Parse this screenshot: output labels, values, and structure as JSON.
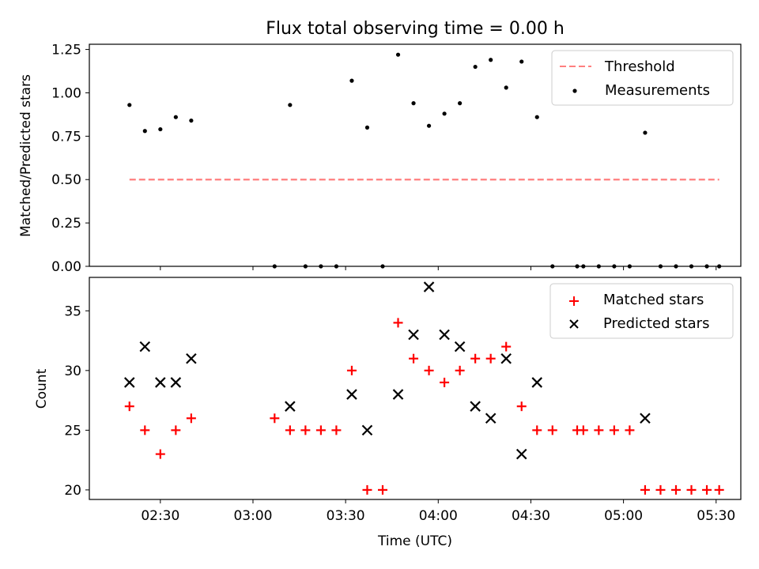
{
  "chart_data": [
    {
      "type": "scatter",
      "title": "Flux total observing time = 0.00 h",
      "xlabel": "",
      "ylabel": "Matched/Predicted stars",
      "ylim": [
        0,
        1.28
      ],
      "yticks": [
        "0.00",
        "0.25",
        "0.50",
        "0.75",
        "1.00",
        "1.25"
      ],
      "legend_position": "top-right",
      "series": [
        {
          "name": "Threshold",
          "kind": "dashed-line",
          "color": "#ff7f7f",
          "x": [
            "02:20",
            "05:31"
          ],
          "y": [
            0.5,
            0.5
          ]
        },
        {
          "name": "Measurements",
          "kind": "point",
          "color": "#000000",
          "x": [
            "02:20",
            "02:25",
            "02:30",
            "02:35",
            "02:40",
            "03:07",
            "03:12",
            "03:17",
            "03:22",
            "03:27",
            "03:32",
            "03:37",
            "03:42",
            "03:47",
            "03:52",
            "03:57",
            "04:02",
            "04:07",
            "04:12",
            "04:17",
            "04:22",
            "04:27",
            "04:32",
            "04:37",
            "04:45",
            "04:47",
            "04:52",
            "04:57",
            "05:02",
            "05:07",
            "05:12",
            "05:17",
            "05:22",
            "05:27",
            "05:31"
          ],
          "y": [
            0.93,
            0.78,
            0.79,
            0.86,
            0.84,
            0.0,
            0.93,
            0.0,
            0.0,
            0.0,
            1.07,
            0.8,
            0.0,
            1.22,
            0.94,
            0.81,
            0.88,
            0.94,
            1.15,
            1.19,
            1.03,
            1.18,
            0.86,
            0.0,
            0.0,
            0.0,
            0.0,
            0.0,
            0.0,
            0.77,
            0.0,
            0.0,
            0.0,
            0.0,
            0.0
          ]
        }
      ]
    },
    {
      "type": "scatter",
      "title": "",
      "xlabel": "Time (UTC)",
      "ylabel": "Count",
      "ylim": [
        19.2,
        37.8
      ],
      "yticks": [
        "20",
        "25",
        "30",
        "35"
      ],
      "xticks": [
        "02:30",
        "03:00",
        "03:30",
        "04:00",
        "04:30",
        "05:00",
        "05:30"
      ],
      "legend_position": "top-right",
      "series": [
        {
          "name": "Matched stars",
          "kind": "plus",
          "color": "#ff0000",
          "x": [
            "02:20",
            "02:25",
            "02:30",
            "02:35",
            "02:40",
            "03:07",
            "03:12",
            "03:17",
            "03:22",
            "03:27",
            "03:32",
            "03:37",
            "03:42",
            "03:47",
            "03:52",
            "03:57",
            "04:02",
            "04:07",
            "04:12",
            "04:17",
            "04:22",
            "04:27",
            "04:32",
            "04:37",
            "04:45",
            "04:47",
            "04:52",
            "04:57",
            "05:02",
            "05:07",
            "05:12",
            "05:17",
            "05:22",
            "05:27",
            "05:31"
          ],
          "y": [
            27,
            25,
            23,
            25,
            26,
            26,
            25,
            25,
            25,
            25,
            30,
            20,
            20,
            34,
            31,
            30,
            29,
            30,
            31,
            31,
            32,
            27,
            25,
            25,
            25,
            25,
            25,
            25,
            25,
            20,
            20,
            20,
            20,
            20,
            20
          ]
        },
        {
          "name": "Predicted stars",
          "kind": "x",
          "color": "#000000",
          "x": [
            "02:20",
            "02:25",
            "02:30",
            "02:35",
            "02:40",
            "03:12",
            "03:32",
            "03:37",
            "03:47",
            "03:52",
            "03:57",
            "04:02",
            "04:07",
            "04:12",
            "04:17",
            "04:22",
            "04:27",
            "04:32",
            "05:07"
          ],
          "y": [
            29,
            32,
            29,
            29,
            31,
            27,
            28,
            25,
            28,
            33,
            37,
            33,
            32,
            27,
            26,
            31,
            23,
            29,
            26
          ]
        }
      ]
    }
  ]
}
